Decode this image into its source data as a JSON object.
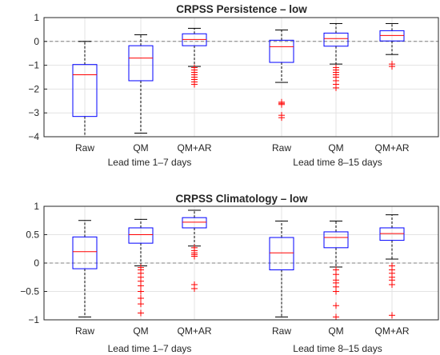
{
  "style": {
    "box_color": "#0000ff",
    "median_color": "#ff0000",
    "outlier_color": "#ff0000",
    "whisker_color": "#000000",
    "zero_line_color": "#808080",
    "grid_color": "#e3e3e3"
  },
  "chart_data": [
    {
      "type": "box",
      "title": "CRPSS Persistence – low",
      "ylim": [
        -4,
        1
      ],
      "yticks": [
        "1",
        "0",
        "−1",
        "−2",
        "−3",
        "−4"
      ],
      "ytick_values": [
        1,
        0,
        -1,
        -2,
        -3,
        -4
      ],
      "reference_line": 0,
      "grid": true,
      "groups": [
        {
          "label": "Lead time 1–7 days",
          "boxes": [
            {
              "label": "Raw",
              "whisker_low": -4.0,
              "q1": -3.15,
              "median": -1.4,
              "q3": -0.97,
              "whisker_high": 0.0,
              "outliers": []
            },
            {
              "label": "QM",
              "whisker_low": -3.85,
              "q1": -1.65,
              "median": -0.7,
              "q3": -0.18,
              "whisker_high": 0.28,
              "outliers": []
            },
            {
              "label": "QM+AR",
              "whisker_low": -1.05,
              "q1": -0.18,
              "median": 0.08,
              "q3": 0.32,
              "whisker_high": 0.55,
              "outliers": [
                -1.1,
                -1.2,
                -1.3,
                -1.4,
                -1.5,
                -1.6,
                -1.7,
                -1.8
              ]
            }
          ]
        },
        {
          "label": "Lead time 8–15 days",
          "boxes": [
            {
              "label": "Raw",
              "whisker_low": -1.72,
              "q1": -0.88,
              "median": -0.22,
              "q3": 0.05,
              "whisker_high": 0.48,
              "outliers": [
                -2.55,
                -2.6,
                -2.65,
                -3.1,
                -3.2
              ]
            },
            {
              "label": "QM",
              "whisker_low": -0.95,
              "q1": -0.2,
              "median": 0.12,
              "q3": 0.35,
              "whisker_high": 0.75,
              "outliers": [
                -1.1,
                -1.2,
                -1.3,
                -1.4,
                -1.5,
                -1.65,
                -1.8,
                -1.95
              ]
            },
            {
              "label": "QM+AR",
              "whisker_low": -0.55,
              "q1": 0.02,
              "median": 0.25,
              "q3": 0.45,
              "whisker_high": 0.75,
              "outliers": [
                -0.95,
                -1.05
              ]
            }
          ]
        }
      ]
    },
    {
      "type": "box",
      "title": "CRPSS Climatology – low",
      "ylim": [
        -1,
        1
      ],
      "yticks": [
        "1",
        "0.5",
        "0",
        "−0.5",
        "−1"
      ],
      "ytick_values": [
        1,
        0.5,
        0,
        -0.5,
        -1
      ],
      "reference_line": 0,
      "grid": true,
      "groups": [
        {
          "label": "Lead time 1–7 days",
          "boxes": [
            {
              "label": "Raw",
              "whisker_low": -0.95,
              "q1": -0.1,
              "median": 0.2,
              "q3": 0.46,
              "whisker_high": 0.75,
              "outliers": []
            },
            {
              "label": "QM",
              "whisker_low": -0.05,
              "q1": 0.35,
              "median": 0.5,
              "q3": 0.62,
              "whisker_high": 0.77,
              "outliers": [
                -0.08,
                -0.12,
                -0.18,
                -0.25,
                -0.32,
                -0.4,
                -0.5,
                -0.62,
                -0.72,
                -0.88
              ]
            },
            {
              "label": "QM+AR",
              "whisker_low": 0.3,
              "q1": 0.62,
              "median": 0.72,
              "q3": 0.8,
              "whisker_high": 0.93,
              "outliers": [
                0.12,
                0.15,
                0.18,
                0.22,
                0.27,
                -0.38,
                -0.45
              ]
            }
          ]
        },
        {
          "label": "Lead time 8–15 days",
          "boxes": [
            {
              "label": "Raw",
              "whisker_low": -0.95,
              "q1": -0.12,
              "median": 0.18,
              "q3": 0.45,
              "whisker_high": 0.74,
              "outliers": []
            },
            {
              "label": "QM",
              "whisker_low": -0.07,
              "q1": 0.27,
              "median": 0.45,
              "q3": 0.55,
              "whisker_high": 0.74,
              "outliers": [
                -0.12,
                -0.2,
                -0.3,
                -0.35,
                -0.42,
                -0.5,
                -0.75,
                -0.95
              ]
            },
            {
              "label": "QM+AR",
              "whisker_low": 0.07,
              "q1": 0.4,
              "median": 0.52,
              "q3": 0.62,
              "whisker_high": 0.85,
              "outliers": [
                -0.05,
                -0.12,
                -0.18,
                -0.25,
                -0.3,
                -0.38,
                -0.92
              ]
            }
          ]
        }
      ]
    }
  ]
}
